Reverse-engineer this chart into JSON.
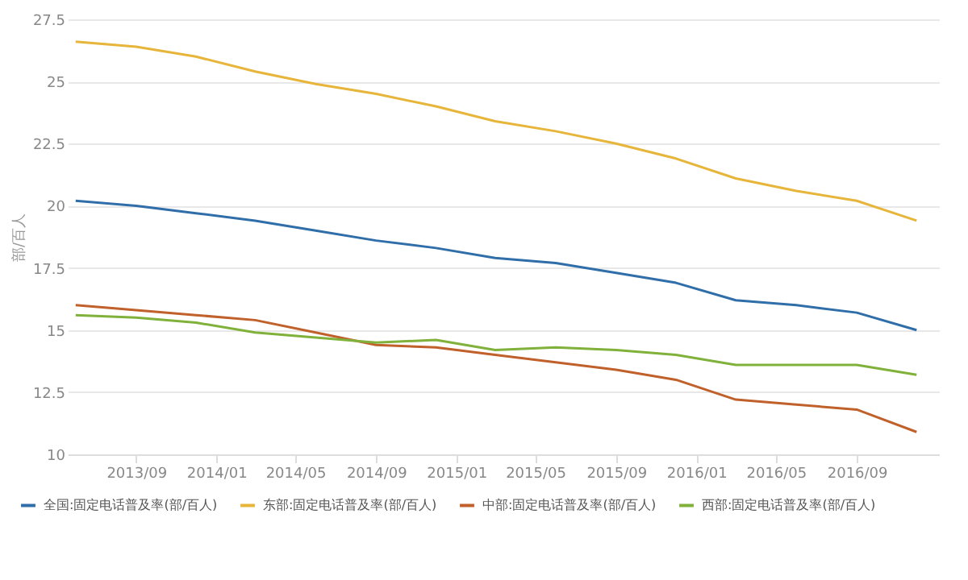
{
  "chart_data": {
    "type": "line",
    "ylabel": "部/百人",
    "x": [
      "2013-06",
      "2013-09",
      "2013-12",
      "2014-03",
      "2014-06",
      "2014-09",
      "2014-12",
      "2015-03",
      "2015-06",
      "2015-09",
      "2015-12",
      "2016-03",
      "2016-06",
      "2016-09",
      "2016-12"
    ],
    "series": [
      {
        "name": "全国:固定电话普及率(部/百人)",
        "color": "#2f6ea8",
        "values": [
          20.2,
          20.0,
          19.7,
          19.4,
          19.0,
          18.6,
          18.3,
          17.9,
          17.7,
          17.3,
          16.9,
          16.2,
          16.0,
          15.7,
          15.0
        ]
      },
      {
        "name": "东部:固定电话普及率(部/百人)",
        "color": "#e6b53a",
        "values": [
          26.6,
          26.4,
          26.0,
          25.4,
          24.9,
          24.5,
          24.0,
          23.4,
          23.0,
          22.5,
          21.9,
          21.1,
          20.6,
          20.2,
          19.4
        ]
      },
      {
        "name": "中部:固定电话普及率(部/百人)",
        "color": "#c0602a",
        "values": [
          16.0,
          15.8,
          15.6,
          15.4,
          14.9,
          14.4,
          14.3,
          14.0,
          13.7,
          13.4,
          13.0,
          12.2,
          12.0,
          11.8,
          10.9
        ]
      },
      {
        "name": "西部:固定电话普及率(部/百人)",
        "color": "#80b13a",
        "values": [
          15.6,
          15.5,
          15.3,
          14.9,
          14.7,
          14.5,
          14.6,
          14.2,
          14.3,
          14.2,
          14.0,
          13.6,
          13.6,
          13.6,
          13.2
        ]
      }
    ],
    "xlim": [
      "2013-05-20",
      "2017-01-04"
    ],
    "xticks": [
      {
        "value": "2013-09",
        "label": "2013/09"
      },
      {
        "value": "2014-01",
        "label": "2014/01"
      },
      {
        "value": "2014-05",
        "label": "2014/05"
      },
      {
        "value": "2014-09",
        "label": "2014/09"
      },
      {
        "value": "2015-01",
        "label": "2015/01"
      },
      {
        "value": "2015-05",
        "label": "2015/05"
      },
      {
        "value": "2015-09",
        "label": "2015/09"
      },
      {
        "value": "2016-01",
        "label": "2016/01"
      },
      {
        "value": "2016-05",
        "label": "2016/05"
      },
      {
        "value": "2016-09",
        "label": "2016/09"
      }
    ],
    "ylim": [
      10,
      27.5
    ],
    "yticks": [
      10,
      12.5,
      15,
      17.5,
      20,
      22.5,
      25,
      27.5
    ],
    "grid": "y",
    "legend": "bottom",
    "marker": "none",
    "line_style": "solid"
  }
}
